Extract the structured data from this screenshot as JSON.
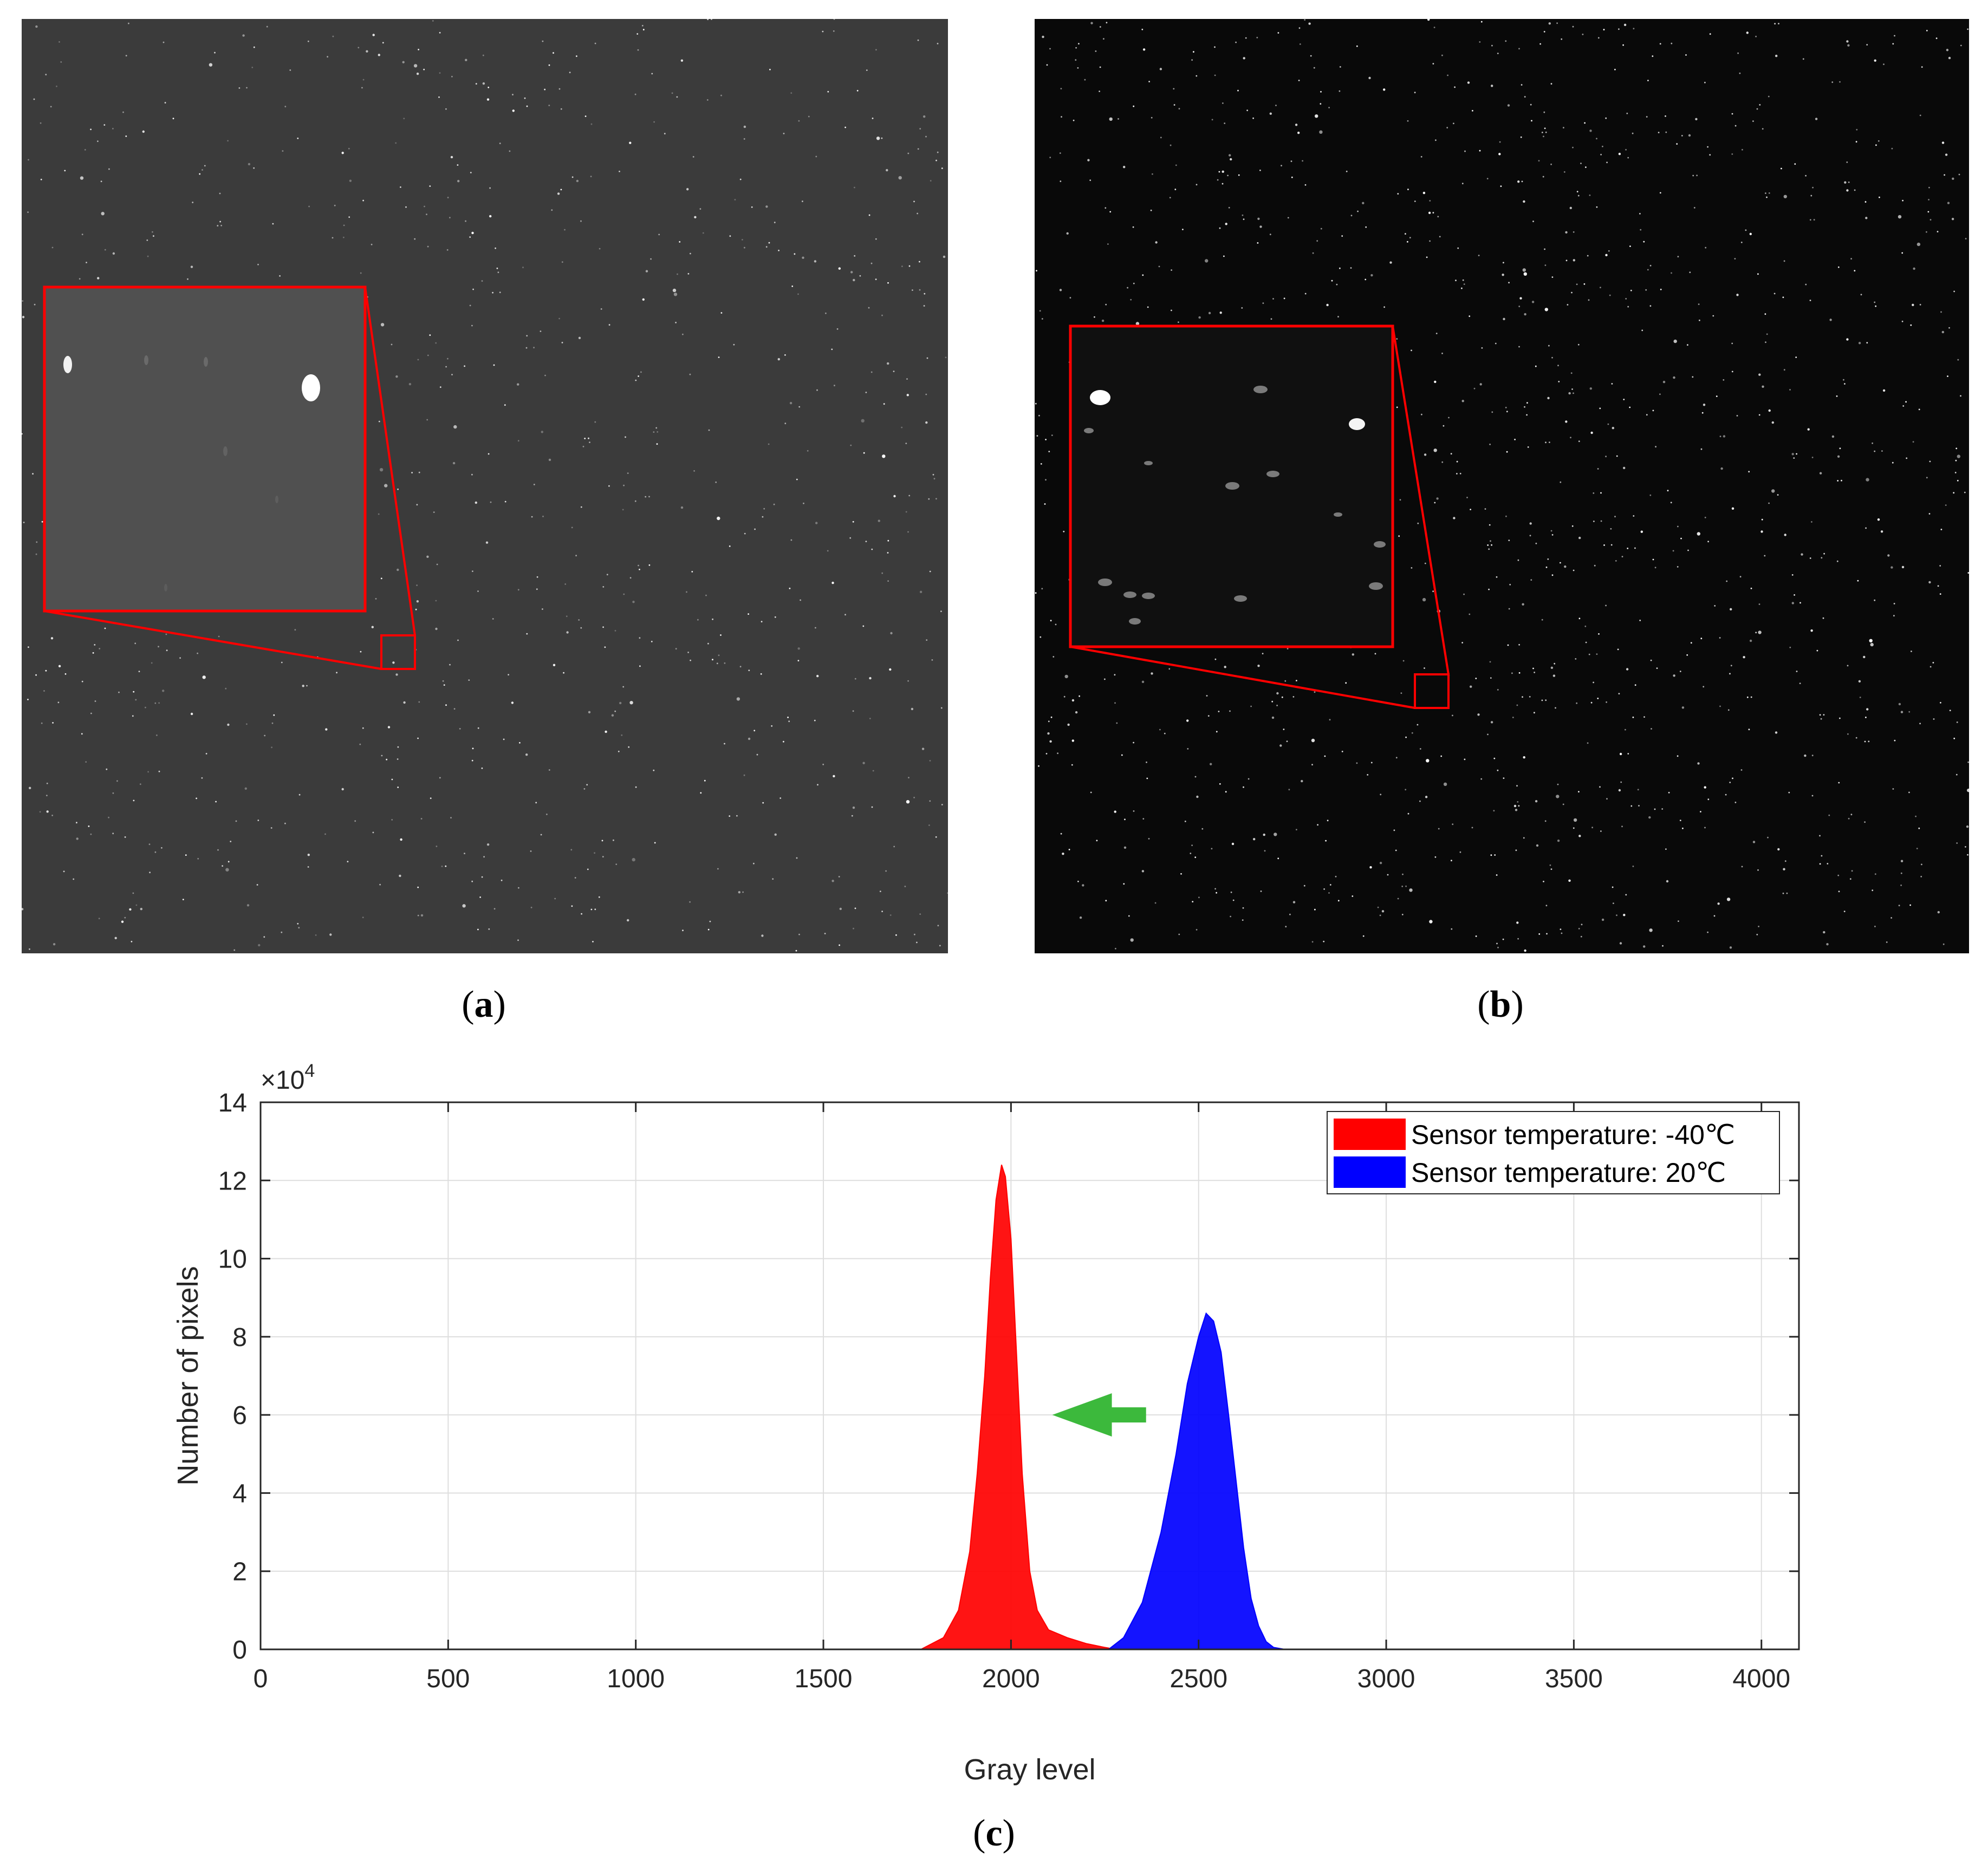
{
  "captions": {
    "a": "a",
    "b": "b",
    "c": "c"
  },
  "photos": {
    "a": {
      "background": "#3b3b3b",
      "inset_background": "#505050",
      "frame_color": "#ff0000"
    },
    "b": {
      "background": "#090909",
      "inset_background": "#101010",
      "frame_color": "#ff0000"
    }
  },
  "chart_data": {
    "type": "area",
    "title": "",
    "xlabel": "Gray level",
    "ylabel": "Number of pixels",
    "y_exponent_label": "×10",
    "y_exponent_power": "4",
    "xlim": [
      0,
      4100
    ],
    "ylim": [
      0,
      14
    ],
    "x_ticks": [
      0,
      500,
      1000,
      1500,
      2000,
      2500,
      3000,
      3500,
      4000
    ],
    "y_ticks": [
      0,
      2,
      4,
      6,
      8,
      10,
      12,
      14
    ],
    "grid": true,
    "legend_position": "top-right",
    "series": [
      {
        "name": "Sensor temperature: -40℃",
        "color": "#ff0000",
        "x": [
          1760,
          1820,
          1860,
          1890,
          1910,
          1930,
          1945,
          1960,
          1975,
          1985,
          2000,
          2015,
          2030,
          2050,
          2070,
          2100,
          2150,
          2200,
          2250,
          2280
        ],
        "y": [
          0,
          0.3,
          1.0,
          2.5,
          4.5,
          7.0,
          9.5,
          11.5,
          12.4,
          12.1,
          10.5,
          7.5,
          4.5,
          2.0,
          1.0,
          0.5,
          0.3,
          0.15,
          0.05,
          0
        ]
      },
      {
        "name": "Sensor temperature: 20℃",
        "color": "#0000ff",
        "x": [
          2260,
          2300,
          2350,
          2400,
          2440,
          2470,
          2500,
          2520,
          2540,
          2560,
          2580,
          2600,
          2620,
          2640,
          2660,
          2680,
          2700,
          2730
        ],
        "y": [
          0,
          0.3,
          1.2,
          3.0,
          5.0,
          6.8,
          8.0,
          8.6,
          8.4,
          7.6,
          6.0,
          4.3,
          2.6,
          1.3,
          0.6,
          0.2,
          0.05,
          0
        ]
      }
    ],
    "annotation_arrow": {
      "color": "#3cb93c",
      "from_x": 2360,
      "to_x": 2110,
      "y": 6
    }
  }
}
